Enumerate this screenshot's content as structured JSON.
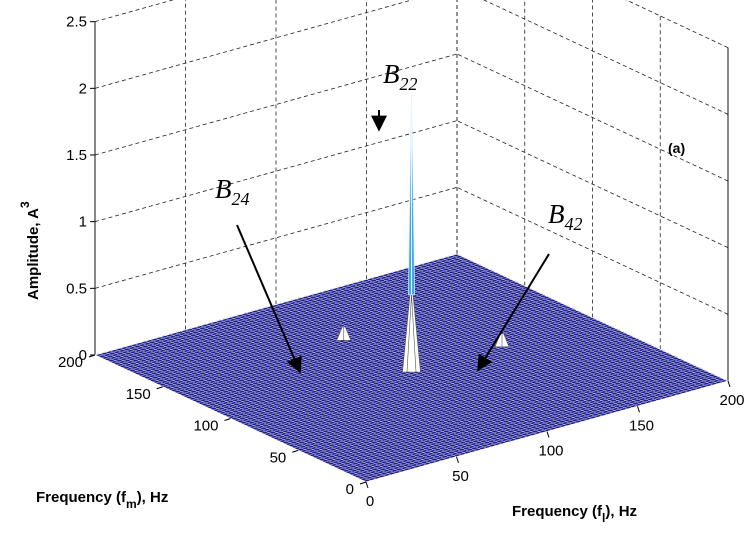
{
  "chart_data": {
    "type": "surface3d",
    "panel_label": "(a)",
    "xlabel": {
      "main": "Frequency (f",
      "sub": "m",
      "tail": "), Hz"
    },
    "ylabel": {
      "main": "Frequency (f",
      "sub": "l",
      "tail": "), Hz"
    },
    "zlabel": {
      "main": "Amplitude, A",
      "sup": "3"
    },
    "x_ticks": [
      "0",
      "50",
      "100",
      "150",
      "200"
    ],
    "y_ticks": [
      "0",
      "50",
      "100",
      "150",
      "200"
    ],
    "z_ticks": [
      "0",
      "0.5",
      "1",
      "1.5",
      "2",
      "2.5"
    ],
    "xlim": [
      0,
      200
    ],
    "ylim": [
      0,
      200
    ],
    "zlim": [
      0,
      2.5
    ],
    "surface_color": "#1c1c8c",
    "mesh_color": "#ffffff",
    "peak_color": "#3fa9e6",
    "peaks": [
      {
        "label_main": "B",
        "label_sub": "22",
        "fm": 100,
        "fl": 100,
        "amplitude": 2.05
      },
      {
        "label_main": "B",
        "label_sub": "24",
        "fm": 150,
        "fl": 100,
        "amplitude": 0.07
      },
      {
        "label_main": "B",
        "label_sub": "42",
        "fm": 100,
        "fl": 150,
        "amplitude": 0.07
      }
    ]
  }
}
